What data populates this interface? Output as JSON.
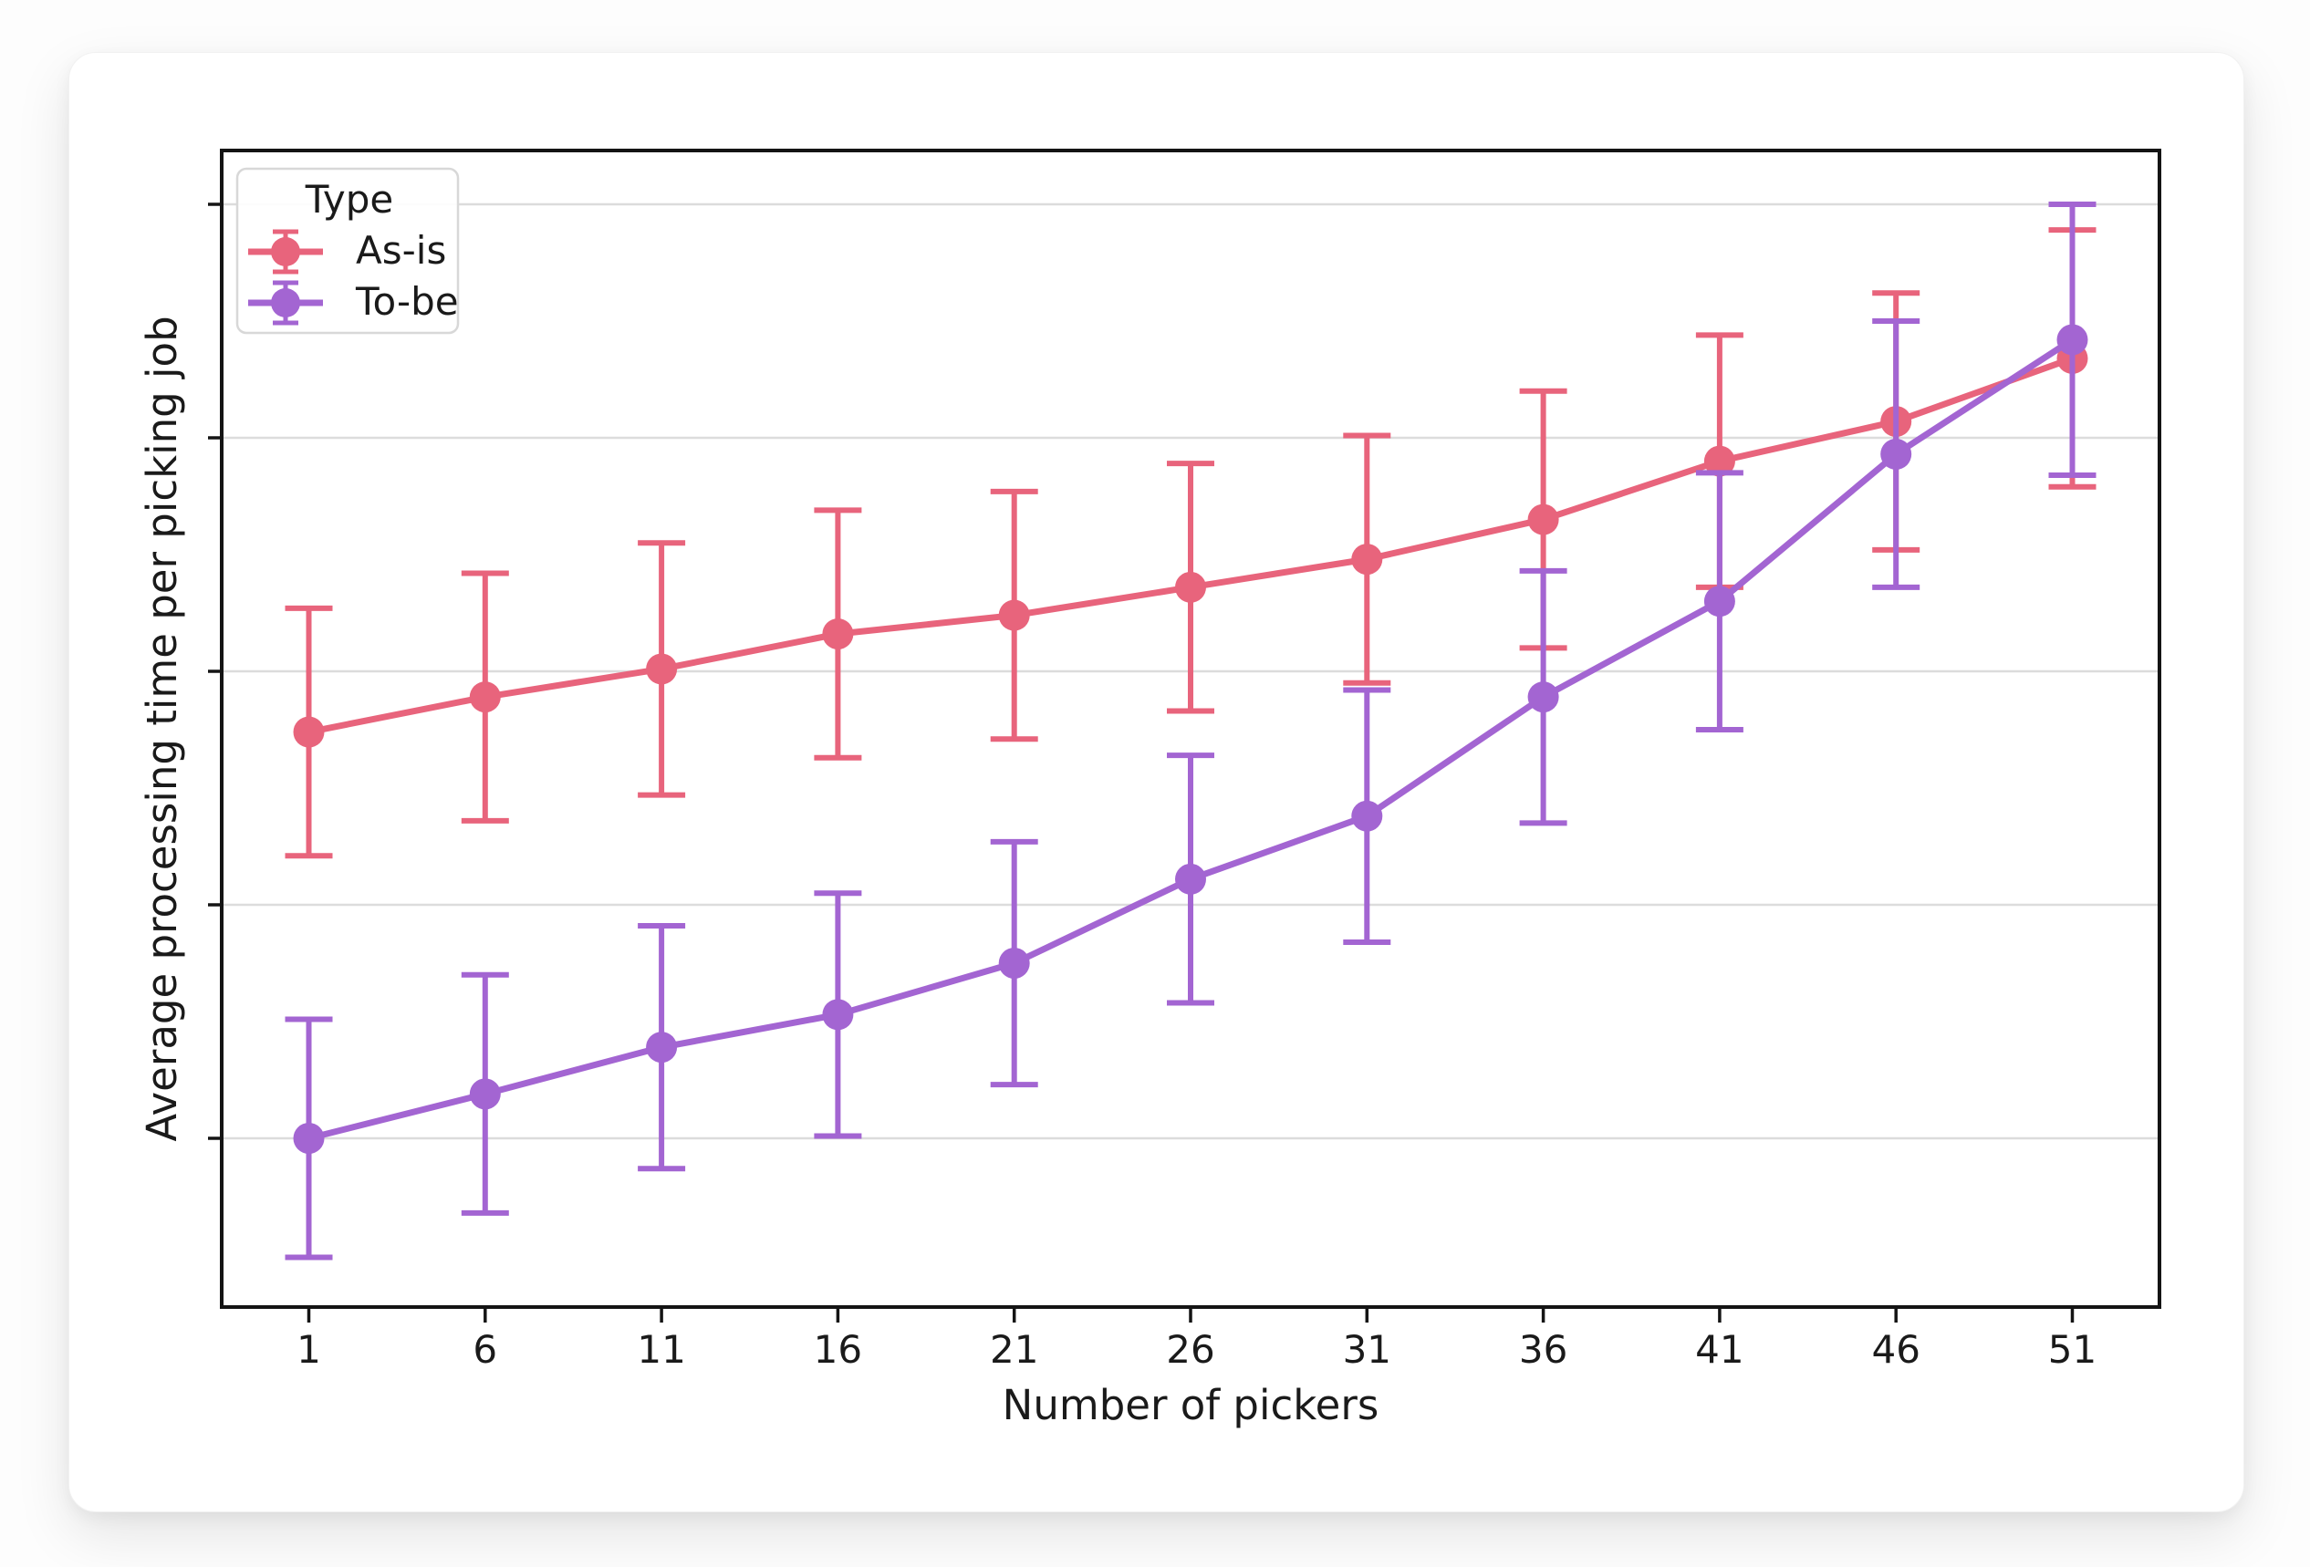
{
  "chart_data": {
    "type": "line",
    "subtype": "errorbar",
    "title": "",
    "xlabel": "Number of pickers",
    "ylabel": "Average processing time per picking job",
    "categories": [
      1,
      6,
      11,
      16,
      21,
      26,
      31,
      36,
      41,
      46,
      51
    ],
    "series": [
      {
        "name": "As-is",
        "color": "#e8647c",
        "values": [
          2.74,
          2.89,
          3.01,
          3.16,
          3.24,
          3.36,
          3.48,
          3.65,
          3.9,
          4.07,
          4.34
        ],
        "errors": [
          0.53,
          0.53,
          0.54,
          0.53,
          0.53,
          0.53,
          0.53,
          0.55,
          0.54,
          0.55,
          0.55
        ]
      },
      {
        "name": "To-be",
        "color": "#a365d2",
        "values": [
          1.0,
          1.19,
          1.39,
          1.53,
          1.75,
          2.11,
          2.38,
          2.89,
          3.3,
          3.93,
          4.42
        ],
        "errors": [
          0.51,
          0.51,
          0.52,
          0.52,
          0.52,
          0.53,
          0.54,
          0.54,
          0.55,
          0.57,
          0.58
        ]
      }
    ],
    "legend": {
      "title": "Type",
      "position": "upper-left"
    },
    "x_axis": {
      "tick_labels": [
        "1",
        "6",
        "11",
        "16",
        "21",
        "26",
        "31",
        "36",
        "41",
        "46",
        "51"
      ]
    },
    "y_axis": {
      "tick_values": [
        1,
        2,
        3,
        4,
        5
      ],
      "tick_labels_visible": false,
      "ylim": [
        0.27,
        5.23
      ],
      "units": "arbitrary — no numeric labels shown"
    },
    "grid": "horizontal",
    "note": "y values estimated in gridline units (horizontal gridlines = 1..5), since the y-axis shows ticks but no numeric labels"
  },
  "colors": {
    "as_is": "#e8647c",
    "to_be": "#a365d2",
    "grid": "#dcdcdc",
    "spine": "#141414",
    "tick_text": "#1a1a1a",
    "legend_border": "#d8d8d8",
    "card_bg": "#ffffff"
  }
}
